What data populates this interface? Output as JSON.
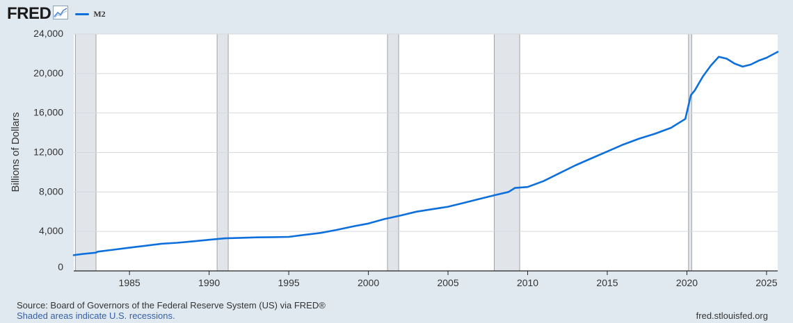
{
  "header": {
    "logo_text": "FRED",
    "logo_icon": "chart-line-icon",
    "legend_label": "M2"
  },
  "colors": {
    "series": "#0d6fdc",
    "recession": "#e1e5ea",
    "background": "#e1e9f0",
    "plot": "#ffffff",
    "grid": "#d5d9de"
  },
  "chart_data": {
    "type": "line",
    "title": "",
    "xlabel": "",
    "ylabel": "Billions of Dollars",
    "xlim": [
      1981.5,
      2025.7
    ],
    "ylim": [
      0,
      24000
    ],
    "y_ticks": [
      0,
      4000,
      8000,
      12000,
      16000,
      20000,
      24000
    ],
    "y_tick_labels": [
      "0",
      "4,000",
      "8,000",
      "12,000",
      "16,000",
      "20,000",
      "24,000"
    ],
    "x_ticks": [
      1985,
      1990,
      1995,
      2000,
      2005,
      2010,
      2015,
      2020,
      2025
    ],
    "x_tick_labels": [
      "1985",
      "1990",
      "1995",
      "2000",
      "2005",
      "2010",
      "2015",
      "2020",
      "2025"
    ],
    "grid": true,
    "legend": "top-left",
    "recessions": [
      [
        1981.6,
        1982.9
      ],
      [
        1990.5,
        1991.2
      ],
      [
        2001.2,
        2001.9
      ],
      [
        2007.9,
        2009.5
      ],
      [
        2020.1,
        2020.3
      ]
    ],
    "series": [
      {
        "name": "M2",
        "x": [
          1981.5,
          1982.0,
          1982.9,
          1983.0,
          1984.0,
          1985.0,
          1986.0,
          1987.0,
          1988.0,
          1989.0,
          1990.0,
          1991.0,
          1992.0,
          1993.0,
          1994.0,
          1995.0,
          1996.0,
          1997.0,
          1998.0,
          1999.0,
          2000.0,
          2001.0,
          2002.0,
          2003.0,
          2004.0,
          2005.0,
          2006.0,
          2007.0,
          2008.0,
          2008.8,
          2009.2,
          2010.0,
          2011.0,
          2012.0,
          2013.0,
          2014.0,
          2015.0,
          2016.0,
          2017.0,
          2018.0,
          2019.0,
          2019.9,
          2020.1,
          2020.25,
          2020.5,
          2021.0,
          2021.5,
          2022.0,
          2022.5,
          2023.0,
          2023.5,
          2024.0,
          2024.5,
          2025.0,
          2025.7
        ],
        "values": [
          1600,
          1700,
          1850,
          1950,
          2150,
          2350,
          2550,
          2750,
          2850,
          3000,
          3150,
          3300,
          3350,
          3400,
          3420,
          3450,
          3650,
          3850,
          4150,
          4500,
          4800,
          5250,
          5600,
          6000,
          6250,
          6500,
          6900,
          7300,
          7700,
          8000,
          8400,
          8500,
          9100,
          9900,
          10700,
          11400,
          12100,
          12800,
          13400,
          13900,
          14500,
          15400,
          16800,
          17800,
          18300,
          19700,
          20800,
          21700,
          21500,
          21000,
          20700,
          20900,
          21300,
          21600,
          22200
        ]
      }
    ]
  },
  "footer": {
    "source": "Source: Board of Governors of the Federal Reserve System (US) via FRED®",
    "recession_note": "Shaded areas indicate U.S. recessions.",
    "website": "fred.stlouisfed.org"
  }
}
